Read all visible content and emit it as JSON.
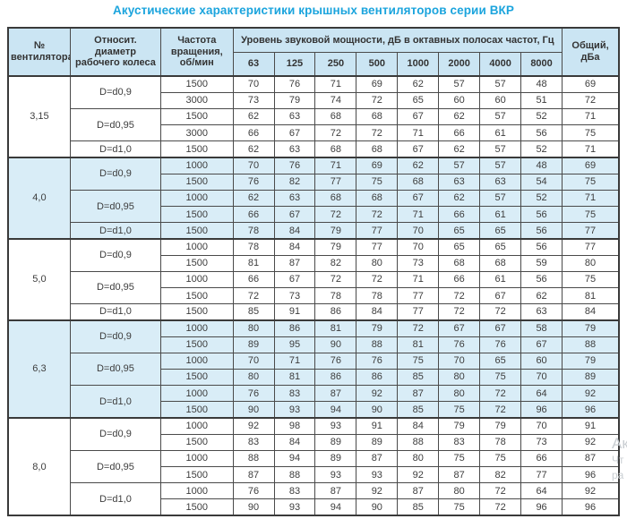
{
  "title": "Акустические характеристики крышных вентиляторов серии ВКР",
  "colors": {
    "title_accent": "#1ba4dd",
    "header_bg": "#cbe5f3",
    "band_bg": "#d9edf7",
    "border": "#3a3a3a",
    "text": "#3d3d3d"
  },
  "watermark": {
    "line1": "Ак",
    "line2": "Чт",
    "line3": "ра"
  },
  "table": {
    "headers": {
      "fan_no": "№ вентилятора",
      "diameter": "Относит. диаметр рабочего колеса",
      "rpm": "Частота вращения, об/мин",
      "spl_group": "Уровень звуковой мощности, дБ в октавных полосах частот, Гц",
      "freqs": [
        "63",
        "125",
        "250",
        "500",
        "1000",
        "2000",
        "4000",
        "8000"
      ],
      "total": "Общий, дБа"
    },
    "groups": [
      {
        "fan": "3,15",
        "shaded": false,
        "subgroups": [
          {
            "d": "D=d0,9",
            "rows": [
              {
                "rpm": "1500",
                "vals": [
                  70,
                  76,
                  71,
                  69,
                  62,
                  57,
                  57,
                  48
                ],
                "total": 69
              },
              {
                "rpm": "3000",
                "vals": [
                  73,
                  79,
                  74,
                  72,
                  65,
                  60,
                  60,
                  51
                ],
                "total": 72
              }
            ]
          },
          {
            "d": "D=d0,95",
            "rows": [
              {
                "rpm": "1500",
                "vals": [
                  62,
                  63,
                  68,
                  68,
                  67,
                  62,
                  57,
                  52
                ],
                "total": 71
              },
              {
                "rpm": "3000",
                "vals": [
                  66,
                  67,
                  72,
                  72,
                  71,
                  66,
                  61,
                  56
                ],
                "total": 75
              }
            ]
          },
          {
            "d": "D=d1,0",
            "rows": [
              {
                "rpm": "1500",
                "vals": [
                  62,
                  63,
                  68,
                  68,
                  67,
                  62,
                  57,
                  52
                ],
                "total": 71
              }
            ]
          }
        ]
      },
      {
        "fan": "4,0",
        "shaded": true,
        "subgroups": [
          {
            "d": "D=d0,9",
            "rows": [
              {
                "rpm": "1000",
                "vals": [
                  70,
                  76,
                  71,
                  69,
                  62,
                  57,
                  57,
                  48
                ],
                "total": 69
              },
              {
                "rpm": "1500",
                "vals": [
                  76,
                  82,
                  77,
                  75,
                  68,
                  63,
                  63,
                  54
                ],
                "total": 75
              }
            ]
          },
          {
            "d": "D=d0,95",
            "rows": [
              {
                "rpm": "1000",
                "vals": [
                  62,
                  63,
                  68,
                  68,
                  67,
                  62,
                  57,
                  52
                ],
                "total": 71
              },
              {
                "rpm": "1500",
                "vals": [
                  66,
                  67,
                  72,
                  72,
                  71,
                  66,
                  61,
                  56
                ],
                "total": 75
              }
            ]
          },
          {
            "d": "D=d1,0",
            "rows": [
              {
                "rpm": "1500",
                "vals": [
                  78,
                  84,
                  79,
                  77,
                  70,
                  65,
                  65,
                  56
                ],
                "total": 77
              }
            ]
          }
        ]
      },
      {
        "fan": "5,0",
        "shaded": false,
        "subgroups": [
          {
            "d": "D=d0,9",
            "rows": [
              {
                "rpm": "1000",
                "vals": [
                  78,
                  84,
                  79,
                  77,
                  70,
                  65,
                  65,
                  56
                ],
                "total": 77
              },
              {
                "rpm": "1500",
                "vals": [
                  81,
                  87,
                  82,
                  80,
                  73,
                  68,
                  68,
                  59
                ],
                "total": 80
              }
            ]
          },
          {
            "d": "D=d0,95",
            "rows": [
              {
                "rpm": "1000",
                "vals": [
                  66,
                  67,
                  72,
                  72,
                  71,
                  66,
                  61,
                  56
                ],
                "total": 75
              },
              {
                "rpm": "1500",
                "vals": [
                  72,
                  73,
                  78,
                  78,
                  77,
                  72,
                  67,
                  62
                ],
                "total": 81
              }
            ]
          },
          {
            "d": "D=d1,0",
            "rows": [
              {
                "rpm": "1500",
                "vals": [
                  85,
                  91,
                  86,
                  84,
                  77,
                  72,
                  72,
                  63
                ],
                "total": 84
              }
            ]
          }
        ]
      },
      {
        "fan": "6,3",
        "shaded": true,
        "subgroups": [
          {
            "d": "D=d0,9",
            "rows": [
              {
                "rpm": "1000",
                "vals": [
                  80,
                  86,
                  81,
                  79,
                  72,
                  67,
                  67,
                  58
                ],
                "total": 79
              },
              {
                "rpm": "1500",
                "vals": [
                  89,
                  95,
                  90,
                  88,
                  81,
                  76,
                  76,
                  67
                ],
                "total": 88
              }
            ]
          },
          {
            "d": "D=d0,95",
            "rows": [
              {
                "rpm": "1000",
                "vals": [
                  70,
                  71,
                  76,
                  76,
                  75,
                  70,
                  65,
                  60
                ],
                "total": 79
              },
              {
                "rpm": "1500",
                "vals": [
                  80,
                  81,
                  86,
                  86,
                  85,
                  80,
                  75,
                  70
                ],
                "total": 89
              }
            ]
          },
          {
            "d": "D=d1,0",
            "rows": [
              {
                "rpm": "1000",
                "vals": [
                  76,
                  83,
                  87,
                  92,
                  87,
                  80,
                  72,
                  64
                ],
                "total": 92
              },
              {
                "rpm": "1500",
                "vals": [
                  90,
                  93,
                  94,
                  90,
                  85,
                  75,
                  72,
                  96
                ],
                "total": 96
              }
            ]
          }
        ]
      },
      {
        "fan": "8,0",
        "shaded": false,
        "subgroups": [
          {
            "d": "D=d0,9",
            "rows": [
              {
                "rpm": "1000",
                "vals": [
                  92,
                  98,
                  93,
                  91,
                  84,
                  79,
                  79,
                  70
                ],
                "total": 91
              },
              {
                "rpm": "1500",
                "vals": [
                  83,
                  84,
                  89,
                  89,
                  88,
                  83,
                  78,
                  73
                ],
                "total": 92
              }
            ]
          },
          {
            "d": "D=d0,95",
            "rows": [
              {
                "rpm": "1000",
                "vals": [
                  88,
                  94,
                  89,
                  87,
                  80,
                  75,
                  75,
                  66
                ],
                "total": 87
              },
              {
                "rpm": "1500",
                "vals": [
                  87,
                  88,
                  93,
                  93,
                  92,
                  87,
                  82,
                  77
                ],
                "total": 96
              }
            ]
          },
          {
            "d": "D=d1,0",
            "rows": [
              {
                "rpm": "1000",
                "vals": [
                  76,
                  83,
                  87,
                  92,
                  87,
                  80,
                  72,
                  64
                ],
                "total": 92
              },
              {
                "rpm": "1500",
                "vals": [
                  90,
                  93,
                  94,
                  90,
                  85,
                  75,
                  72,
                  96
                ],
                "total": 96
              }
            ]
          }
        ]
      }
    ]
  }
}
